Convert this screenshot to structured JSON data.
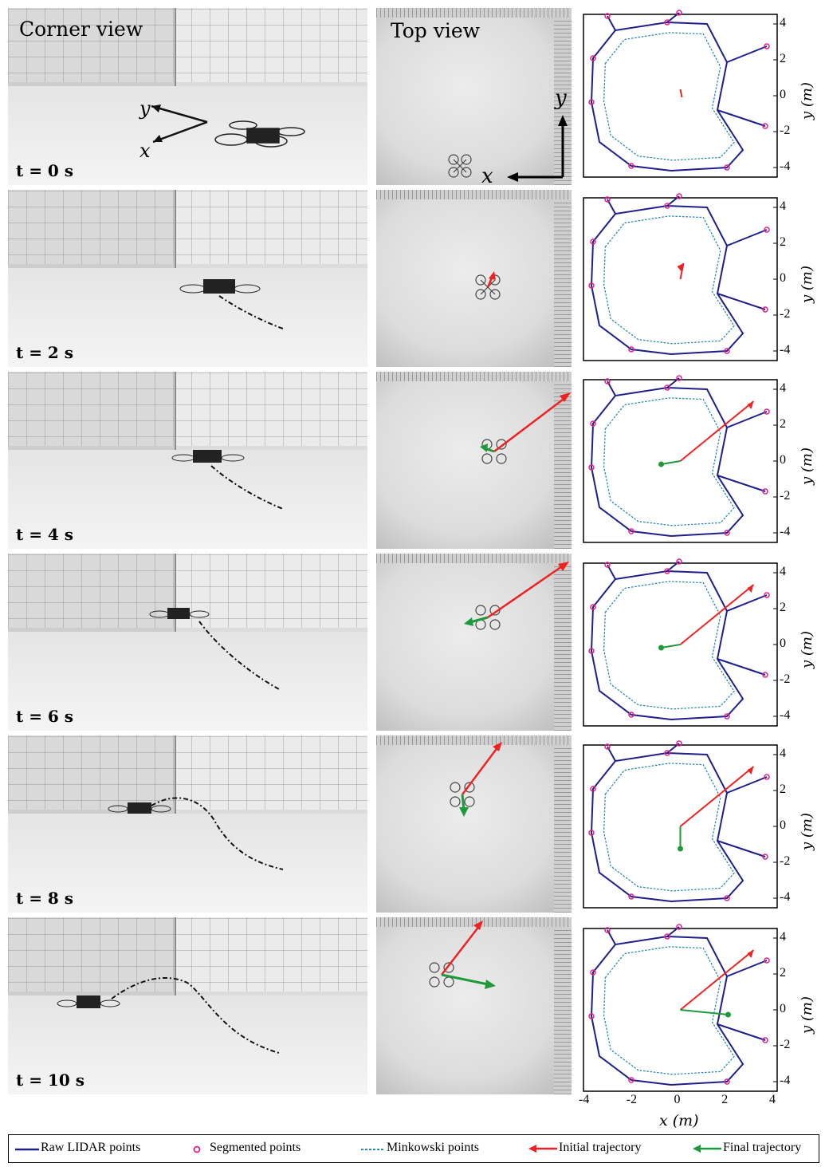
{
  "header": {
    "corner_view": "Corner view",
    "top_view": "Top view"
  },
  "axis_letters": {
    "x": "x",
    "y": "y"
  },
  "rows": [
    {
      "time": "t = 0 s"
    },
    {
      "time": "t = 2 s"
    },
    {
      "time": "t = 4 s"
    },
    {
      "time": "t = 6 s"
    },
    {
      "time": "t = 8 s"
    },
    {
      "time": "t = 10 s"
    }
  ],
  "plot_axes": {
    "ylabel": "y (m)",
    "xlabel": "x (m)",
    "yticks": [
      "4",
      "2",
      "0",
      "-2",
      "-4"
    ],
    "xticks": [
      "-4",
      "-2",
      "0",
      "2",
      "4"
    ]
  },
  "legend": {
    "raw": "Raw LIDAR points",
    "segmented": "Segmented points",
    "minkowski": "Minkowski points",
    "initial": "Initial trajectory",
    "final": "Final trajectory"
  },
  "colors": {
    "raw": "#1f1f8c",
    "segmented": "#e0208a",
    "minkowski": "#2a8ab0",
    "initial": "#ee2222",
    "final": "#1f9a3a"
  }
}
